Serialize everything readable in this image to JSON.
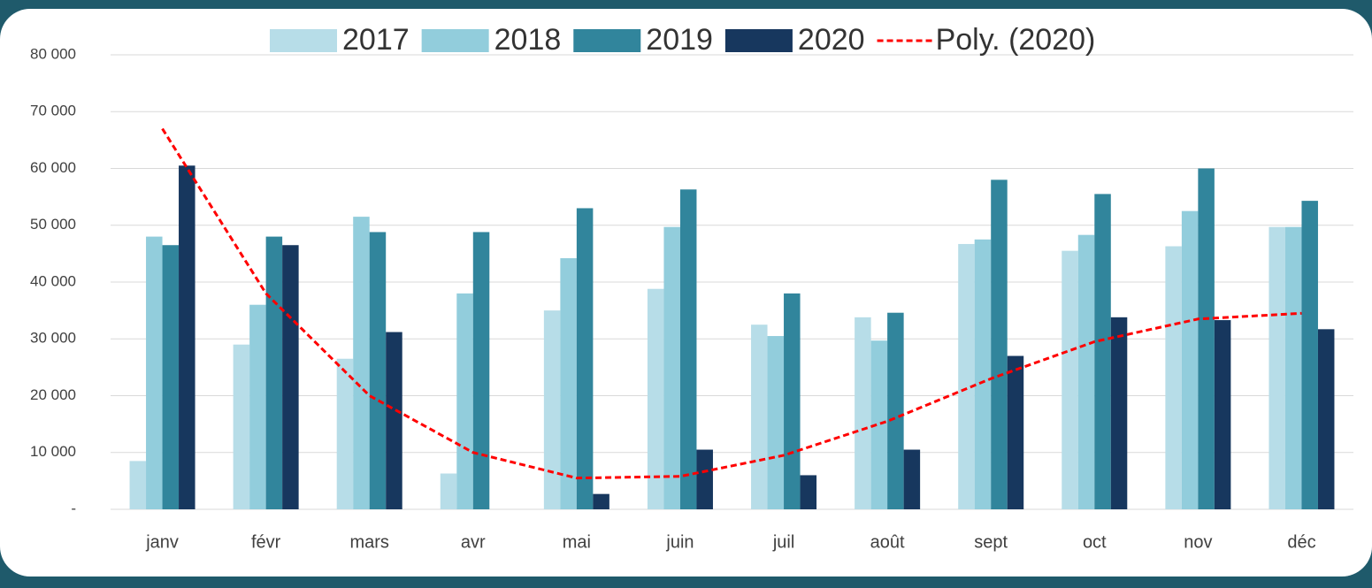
{
  "chart_data": {
    "type": "bar",
    "categories": [
      "janv",
      "févr",
      "mars",
      "avr",
      "mai",
      "juin",
      "juil",
      "août",
      "sept",
      "oct",
      "nov",
      "déc"
    ],
    "series": [
      {
        "name": "2017",
        "color": "#b7dde8",
        "values": [
          8500,
          29000,
          26500,
          6300,
          35000,
          38800,
          32500,
          33800,
          46700,
          45500,
          46300,
          49700
        ]
      },
      {
        "name": "2018",
        "color": "#92cddc",
        "values": [
          48000,
          36000,
          51500,
          38000,
          44200,
          49700,
          30500,
          29700,
          47500,
          48300,
          52500,
          49700
        ]
      },
      {
        "name": "2019",
        "color": "#31859c",
        "values": [
          46500,
          48000,
          48800,
          48800,
          53000,
          56300,
          38000,
          34600,
          58000,
          55500,
          60000,
          54300
        ]
      },
      {
        "name": "2020",
        "color": "#17375e",
        "values": [
          60500,
          46500,
          31200,
          0,
          2700,
          10500,
          6000,
          10500,
          27000,
          33800,
          33300,
          31700
        ]
      },
      {
        "name": "Poly. (2020)",
        "color": "#ff0000",
        "type": "line",
        "values": [
          67000,
          38000,
          20000,
          10000,
          5500,
          5800,
          9500,
          15500,
          23000,
          29500,
          33500,
          34500
        ]
      }
    ],
    "ylim": [
      0,
      80000
    ],
    "yticks": [
      {
        "value": 0,
        "label": "-"
      },
      {
        "value": 10000,
        "label": "10 000"
      },
      {
        "value": 20000,
        "label": "20 000"
      },
      {
        "value": 30000,
        "label": "30 000"
      },
      {
        "value": 40000,
        "label": "40 000"
      },
      {
        "value": 50000,
        "label": "50 000"
      },
      {
        "value": 60000,
        "label": "60 000"
      },
      {
        "value": 70000,
        "label": "70 000"
      },
      {
        "value": 80000,
        "label": "80 000"
      }
    ],
    "grid": true,
    "legend": "top"
  }
}
